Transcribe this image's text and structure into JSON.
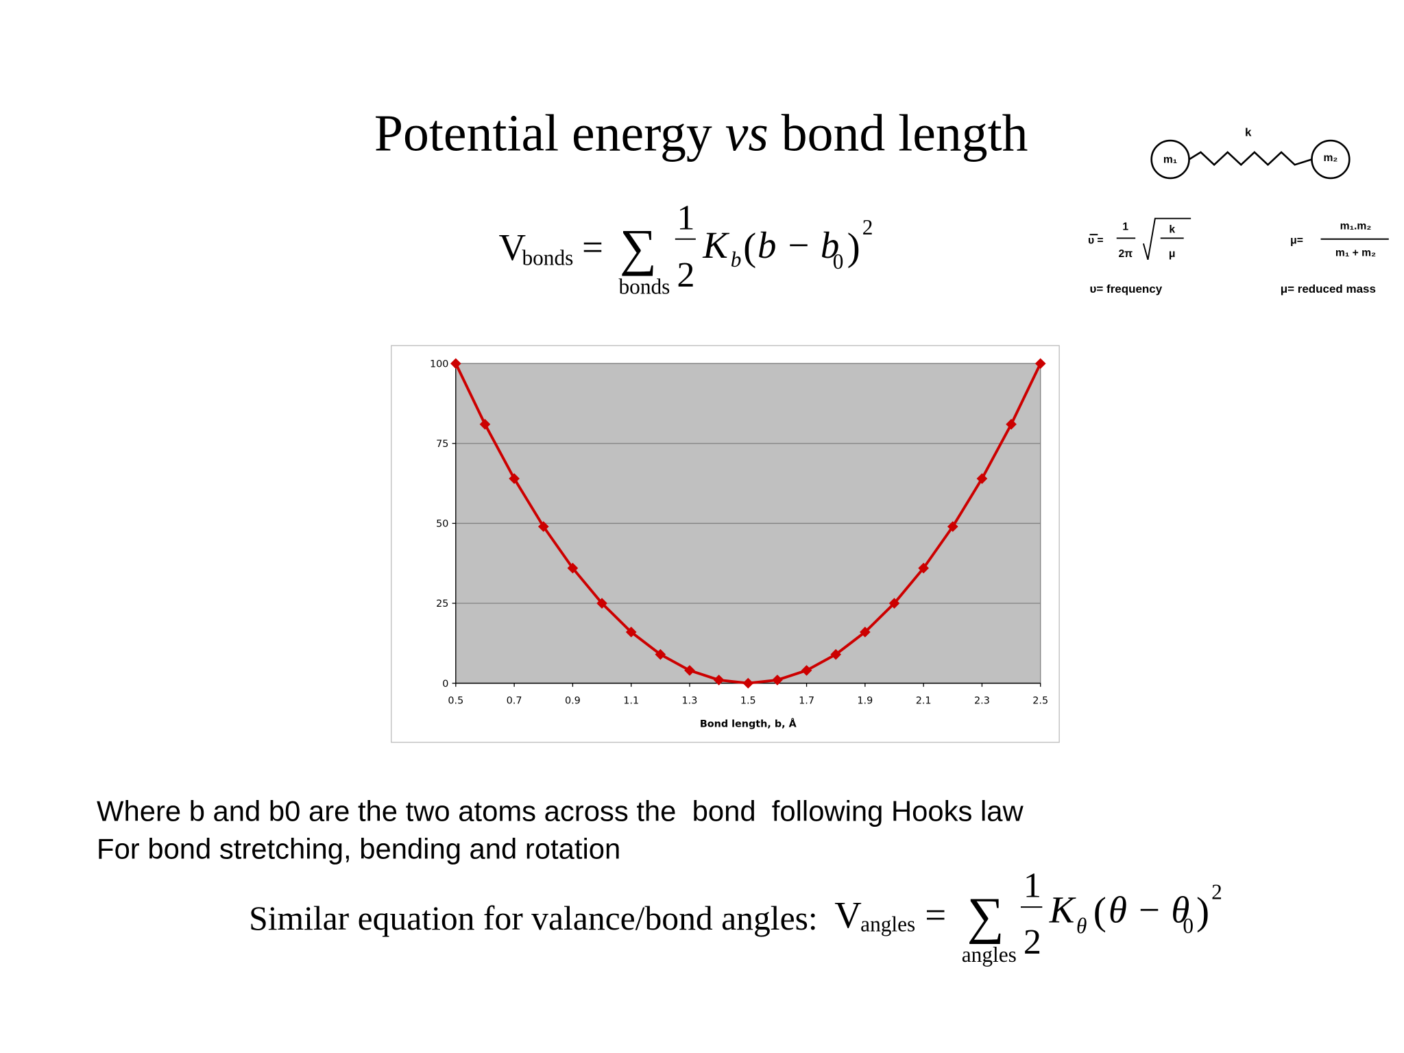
{
  "title": [
    "Potential energy ",
    "vs",
    " bond length"
  ],
  "equation_1": {
    "lhs": "V",
    "lhs_sub": "bonds",
    "eq": "=",
    "sum": "∑",
    "sum_under": "bonds",
    "num": "1",
    "den": "2",
    "coef": "K",
    "coef_sub": "b",
    "open": "(",
    "inner": "b − b",
    "inner_sub": "0",
    "close": ")",
    "power": "2"
  },
  "diagram": {
    "spring_label": "k",
    "mass_1": "m₁",
    "mass_2": "m₂",
    "freq_lhs": "υ =",
    "freq_num": "1",
    "freq_den": "2π",
    "freq_root_num": "k",
    "freq_root_den": "μ",
    "freq_caption": "υ= frequency",
    "mu_lhs": "μ=",
    "mu_num": "m₁.m₂",
    "mu_den": "m₁ + m₂",
    "mu_caption": "μ= reduced mass"
  },
  "chart_data": {
    "type": "line",
    "x_label": "Bond length, b, Å",
    "x": [
      0.5,
      0.6,
      0.7,
      0.8,
      0.9,
      1.0,
      1.1,
      1.2,
      1.3,
      1.4,
      1.5,
      1.6,
      1.7,
      1.8,
      1.9,
      2.0,
      2.1,
      2.2,
      2.3,
      2.4,
      2.5
    ],
    "values": [
      100,
      81,
      64,
      49,
      36,
      25,
      16,
      9,
      4,
      1,
      0,
      1,
      4,
      9,
      16,
      25,
      36,
      49,
      64,
      81,
      100
    ],
    "color": "#cc0000",
    "marker": "diamond",
    "plot_background": "#c0c0c0",
    "grid": true,
    "xlim": [
      0.5,
      2.5
    ],
    "ylim": [
      0,
      100
    ],
    "xticks": [
      0.5,
      0.7,
      0.9,
      1.1,
      1.3,
      1.5,
      1.7,
      1.9,
      2.1,
      2.3,
      2.5
    ],
    "yticks": [
      0,
      25,
      50,
      75,
      100
    ]
  },
  "body_text": [
    "Where b and b0 are the two atoms across the  bond  following Hooks law",
    "For bond stretching, bending and rotation"
  ],
  "equation_2": {
    "intro": "Similar equation for valance/bond angles:",
    "lhs": "V",
    "lhs_sub": "angles",
    "eq": "=",
    "sum": "∑",
    "sum_under": "angles",
    "num": "1",
    "den": "2",
    "coef": "K",
    "coef_sub": "θ",
    "open": "(",
    "inner": "θ − θ",
    "inner_sub": "0",
    "close": ")",
    "power": "2"
  }
}
